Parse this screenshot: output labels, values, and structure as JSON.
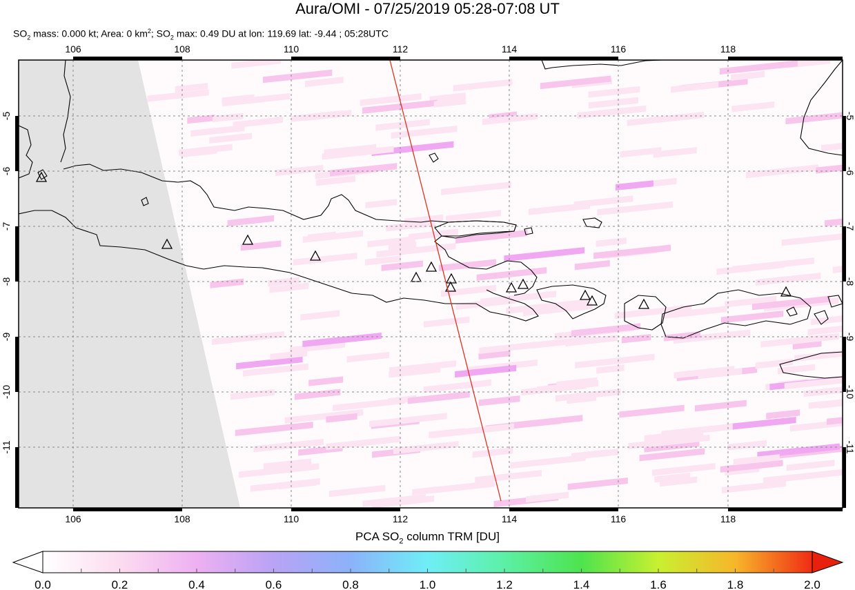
{
  "map": {
    "title": "Aura/OMI - 07/25/2019 05:28-07:08 UT",
    "info": {
      "so2_mass_label": "SO",
      "so2_mass_rest": " mass: 0.000 kt; Area: 0 km",
      "area_rest": "; SO",
      "max_rest": " max: 0.49 DU at lon: 119.69 lat: -9.44 ; 05:28UTC",
      "sub2": "2",
      "sup2": "2"
    },
    "lon_ticks": [
      "106",
      "108",
      "110",
      "112",
      "114",
      "116",
      "118"
    ],
    "lat_ticks": [
      "-5",
      "-6",
      "-7",
      "-8",
      "-9",
      "-10",
      "-11"
    ],
    "lon_range": [
      104.8,
      119.9
    ],
    "lat_range": [
      -12.1,
      -4.0
    ],
    "colors": {
      "no_data": "#e3e3e3",
      "track_line": "#e03020",
      "coastline": "#000000",
      "grid": "#888888",
      "pixel_light": "#fde4f2",
      "pixel_mid": "#f8c6ec",
      "pixel_strong": "#f0a8f2"
    },
    "volcano_icon": "triangle-outline-icon"
  },
  "colorbar": {
    "title_prefix": "PCA SO",
    "title_sub": "2",
    "title_suffix": " column TRM [DU]",
    "tick_labels": [
      "0.0",
      "0.2",
      "0.4",
      "0.6",
      "0.8",
      "1.0",
      "1.2",
      "1.4",
      "1.6",
      "1.8",
      "2.0"
    ],
    "range": [
      0.0,
      2.0
    ],
    "under_color": "#ffffff",
    "over_color": "#e8200e"
  }
}
